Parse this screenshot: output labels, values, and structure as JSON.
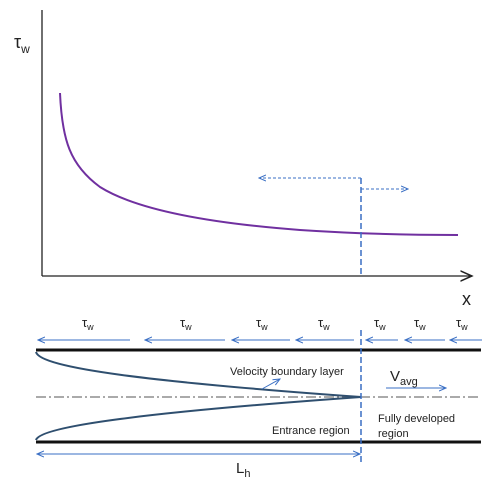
{
  "plot": {
    "y_axis_label": {
      "main": "τ",
      "sub": "w"
    },
    "x_axis_label": "x"
  },
  "pipe": {
    "shear_labels": [
      {
        "main": "τ",
        "sub": "w"
      },
      {
        "main": "τ",
        "sub": "w"
      },
      {
        "main": "τ",
        "sub": "w"
      },
      {
        "main": "τ",
        "sub": "w"
      },
      {
        "main": "τ",
        "sub": "w"
      },
      {
        "main": "τ",
        "sub": "w"
      },
      {
        "main": "τ",
        "sub": "w"
      }
    ],
    "boundary_layer_label": "Velocity boundary layer",
    "velocity_label": {
      "main": "V",
      "sub": "avg"
    },
    "entrance_label": "Entrance region",
    "developed_label": [
      "Fully developed",
      "region"
    ],
    "length_label": {
      "main": "L",
      "sub": "h"
    }
  }
}
